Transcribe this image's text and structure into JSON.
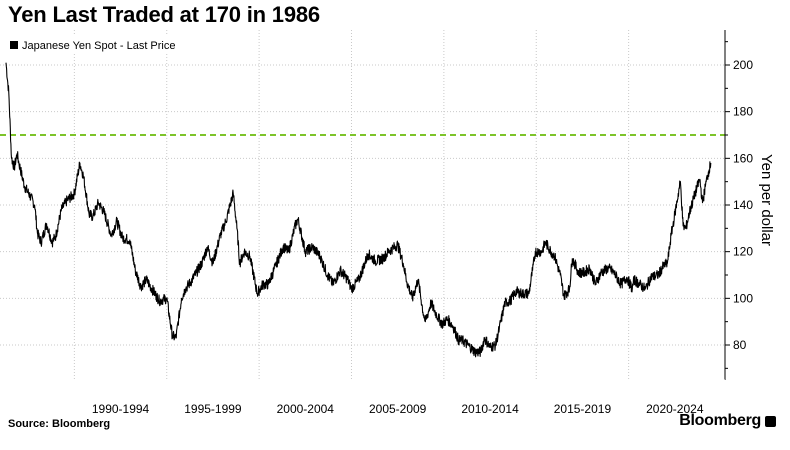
{
  "title": "Yen Last Traded at 170 in 1986",
  "source": "Source: Bloomberg",
  "brand": "Bloomberg",
  "chart_data": {
    "type": "line",
    "title": "Yen Last Traded at 170 in 1986",
    "xlabel": "",
    "ylabel": "Yen per dollar",
    "xlim": [
      1986.3,
      2025.0
    ],
    "ylim": [
      65,
      215
    ],
    "x_tick_labels": [
      {
        "label": "1990-1994",
        "center": 1992.5
      },
      {
        "label": "1995-1999",
        "center": 1997.5
      },
      {
        "label": "2000-2004",
        "center": 2002.5
      },
      {
        "label": "2005-2009",
        "center": 2007.5
      },
      {
        "label": "2010-2014",
        "center": 2012.5
      },
      {
        "label": "2015-2019",
        "center": 2017.5
      },
      {
        "label": "2020-2024",
        "center": 2022.5
      }
    ],
    "x_gridlines": [
      1990,
      1995,
      2000,
      2005,
      2010,
      2015,
      2020
    ],
    "y_ticks": [
      80,
      100,
      120,
      140,
      160,
      180,
      200
    ],
    "grid": true,
    "legend": {
      "position": "top-left",
      "entries": [
        "Japanese Yen Spot - Last Price"
      ]
    },
    "series": [
      {
        "name": "Japanese Yen Spot - Last Price",
        "color": "#000000",
        "points": [
          [
            1986.3,
            201
          ],
          [
            1986.45,
            188
          ],
          [
            1986.6,
            160
          ],
          [
            1986.75,
            156
          ],
          [
            1986.9,
            162
          ],
          [
            1987.0,
            158
          ],
          [
            1987.3,
            148
          ],
          [
            1987.6,
            144
          ],
          [
            1987.85,
            140
          ],
          [
            1988.0,
            128
          ],
          [
            1988.2,
            124
          ],
          [
            1988.5,
            132
          ],
          [
            1988.8,
            124
          ],
          [
            1989.0,
            127
          ],
          [
            1989.3,
            138
          ],
          [
            1989.6,
            142
          ],
          [
            1989.9,
            144
          ],
          [
            1990.0,
            145
          ],
          [
            1990.3,
            158
          ],
          [
            1990.5,
            152
          ],
          [
            1990.8,
            136
          ],
          [
            1991.0,
            135
          ],
          [
            1991.3,
            141
          ],
          [
            1991.6,
            137
          ],
          [
            1992.0,
            127
          ],
          [
            1992.3,
            133
          ],
          [
            1992.6,
            126
          ],
          [
            1993.0,
            125
          ],
          [
            1993.3,
            112
          ],
          [
            1993.6,
            105
          ],
          [
            1993.9,
            108
          ],
          [
            1994.2,
            104
          ],
          [
            1994.6,
            99
          ],
          [
            1995.0,
            100
          ],
          [
            1995.3,
            84
          ],
          [
            1995.5,
            83
          ],
          [
            1995.8,
            100
          ],
          [
            1996.0,
            104
          ],
          [
            1996.3,
            107
          ],
          [
            1996.6,
            111
          ],
          [
            1996.9,
            115
          ],
          [
            1997.2,
            122
          ],
          [
            1997.5,
            115
          ],
          [
            1997.9,
            127
          ],
          [
            1998.2,
            133
          ],
          [
            1998.6,
            145
          ],
          [
            1998.8,
            130
          ],
          [
            1998.95,
            115
          ],
          [
            1999.2,
            120
          ],
          [
            1999.5,
            118
          ],
          [
            1999.9,
            102
          ],
          [
            2000.2,
            106
          ],
          [
            2000.5,
            106
          ],
          [
            2000.9,
            114
          ],
          [
            2001.3,
            122
          ],
          [
            2001.6,
            120
          ],
          [
            2001.95,
            131
          ],
          [
            2002.1,
            134
          ],
          [
            2002.5,
            120
          ],
          [
            2002.9,
            122
          ],
          [
            2003.3,
            118
          ],
          [
            2003.7,
            110
          ],
          [
            2004.0,
            106
          ],
          [
            2004.4,
            112
          ],
          [
            2004.8,
            108
          ],
          [
            2005.0,
            104
          ],
          [
            2005.4,
            108
          ],
          [
            2005.9,
            119
          ],
          [
            2006.3,
            116
          ],
          [
            2006.7,
            117
          ],
          [
            2007.0,
            120
          ],
          [
            2007.5,
            123
          ],
          [
            2007.8,
            115
          ],
          [
            2008.0,
            107
          ],
          [
            2008.3,
            100
          ],
          [
            2008.6,
            108
          ],
          [
            2008.9,
            93
          ],
          [
            2009.0,
            90
          ],
          [
            2009.3,
            98
          ],
          [
            2009.6,
            93
          ],
          [
            2009.9,
            89
          ],
          [
            2010.2,
            91
          ],
          [
            2010.5,
            88
          ],
          [
            2010.8,
            82
          ],
          [
            2011.0,
            82
          ],
          [
            2011.3,
            80
          ],
          [
            2011.7,
            77
          ],
          [
            2012.0,
            77
          ],
          [
            2012.2,
            83
          ],
          [
            2012.5,
            79
          ],
          [
            2012.8,
            80
          ],
          [
            2013.0,
            87
          ],
          [
            2013.3,
            98
          ],
          [
            2013.6,
            99
          ],
          [
            2013.9,
            103
          ],
          [
            2014.2,
            102
          ],
          [
            2014.6,
            102
          ],
          [
            2014.8,
            112
          ],
          [
            2014.95,
            120
          ],
          [
            2015.3,
            120
          ],
          [
            2015.5,
            124
          ],
          [
            2015.8,
            120
          ],
          [
            2016.0,
            118
          ],
          [
            2016.3,
            110
          ],
          [
            2016.5,
            101
          ],
          [
            2016.8,
            104
          ],
          [
            2016.95,
            117
          ],
          [
            2017.3,
            111
          ],
          [
            2017.6,
            111
          ],
          [
            2017.9,
            113
          ],
          [
            2018.2,
            106
          ],
          [
            2018.5,
            111
          ],
          [
            2018.9,
            113
          ],
          [
            2019.2,
            111
          ],
          [
            2019.6,
            106
          ],
          [
            2019.9,
            109
          ],
          [
            2020.2,
            104
          ],
          [
            2020.3,
            108
          ],
          [
            2020.6,
            106
          ],
          [
            2020.9,
            104
          ],
          [
            2021.2,
            109
          ],
          [
            2021.6,
            110
          ],
          [
            2021.9,
            114
          ],
          [
            2022.1,
            115
          ],
          [
            2022.3,
            127
          ],
          [
            2022.5,
            136
          ],
          [
            2022.8,
            150
          ],
          [
            2022.95,
            131
          ],
          [
            2023.1,
            130
          ],
          [
            2023.3,
            137
          ],
          [
            2023.6,
            145
          ],
          [
            2023.85,
            151
          ],
          [
            2024.0,
            141
          ],
          [
            2024.2,
            150
          ],
          [
            2024.35,
            155
          ],
          [
            2024.45,
            158
          ]
        ]
      }
    ],
    "reference_lines": [
      {
        "y": 170,
        "style": "dashed",
        "color": "#7dc42a"
      }
    ]
  }
}
